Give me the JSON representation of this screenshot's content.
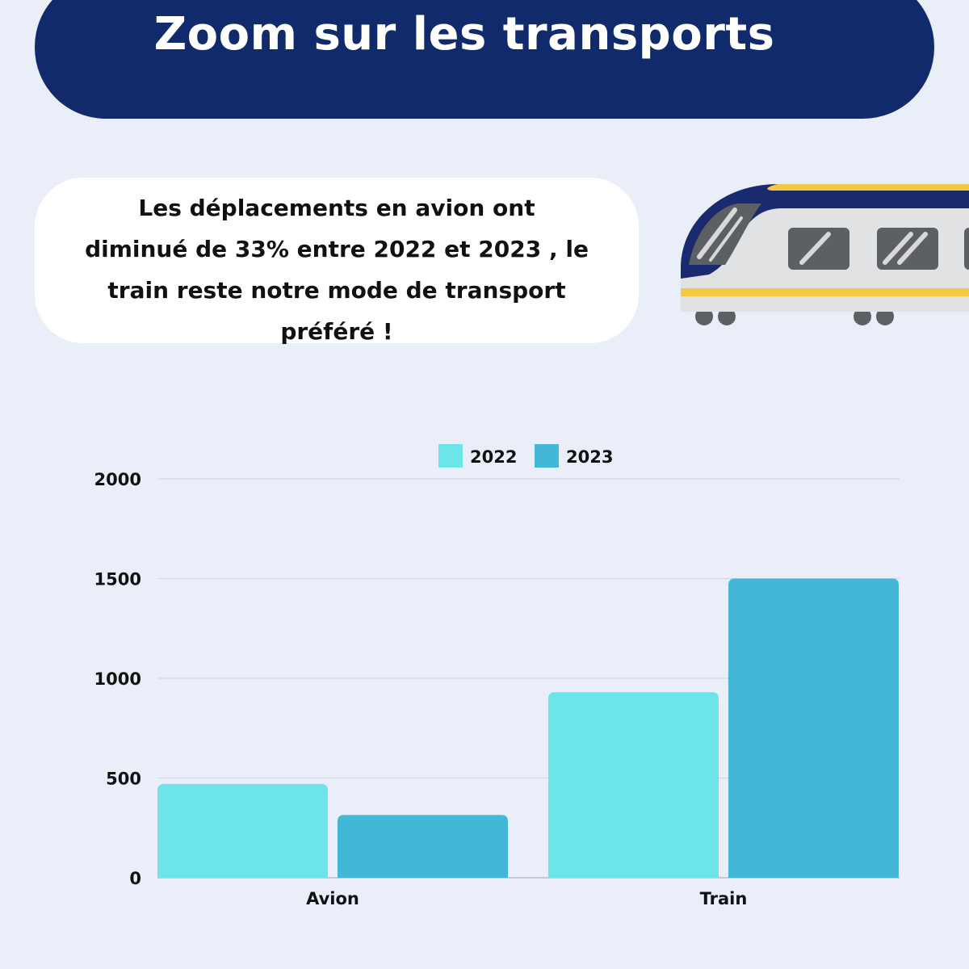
{
  "header": {
    "title": "Zoom sur les transports"
  },
  "callout": {
    "line1": "Les déplacements en avion ont",
    "line2": "diminué de 33% entre 2022 et 2023 , le",
    "line3": "train reste notre mode de transport",
    "line4": "préféré !"
  },
  "illustration": {
    "icon": "train-icon"
  },
  "colors": {
    "banner": "#112a6c",
    "series_2022": "#6ce4e9",
    "series_2023": "#42b7d7",
    "train_yellow": "#f5c842",
    "train_navy": "#1a2a6e"
  },
  "chart_data": {
    "type": "bar",
    "categories": [
      "Avion",
      "Train"
    ],
    "series": [
      {
        "name": "2022",
        "values": [
          470,
          930
        ]
      },
      {
        "name": "2023",
        "values": [
          315,
          1500
        ]
      }
    ],
    "yticks": [
      0,
      500,
      1000,
      1500,
      2000
    ],
    "ylim": [
      0,
      2000
    ],
    "title": "",
    "xlabel": "",
    "ylabel": "",
    "grid": true,
    "legend": "top-center"
  }
}
